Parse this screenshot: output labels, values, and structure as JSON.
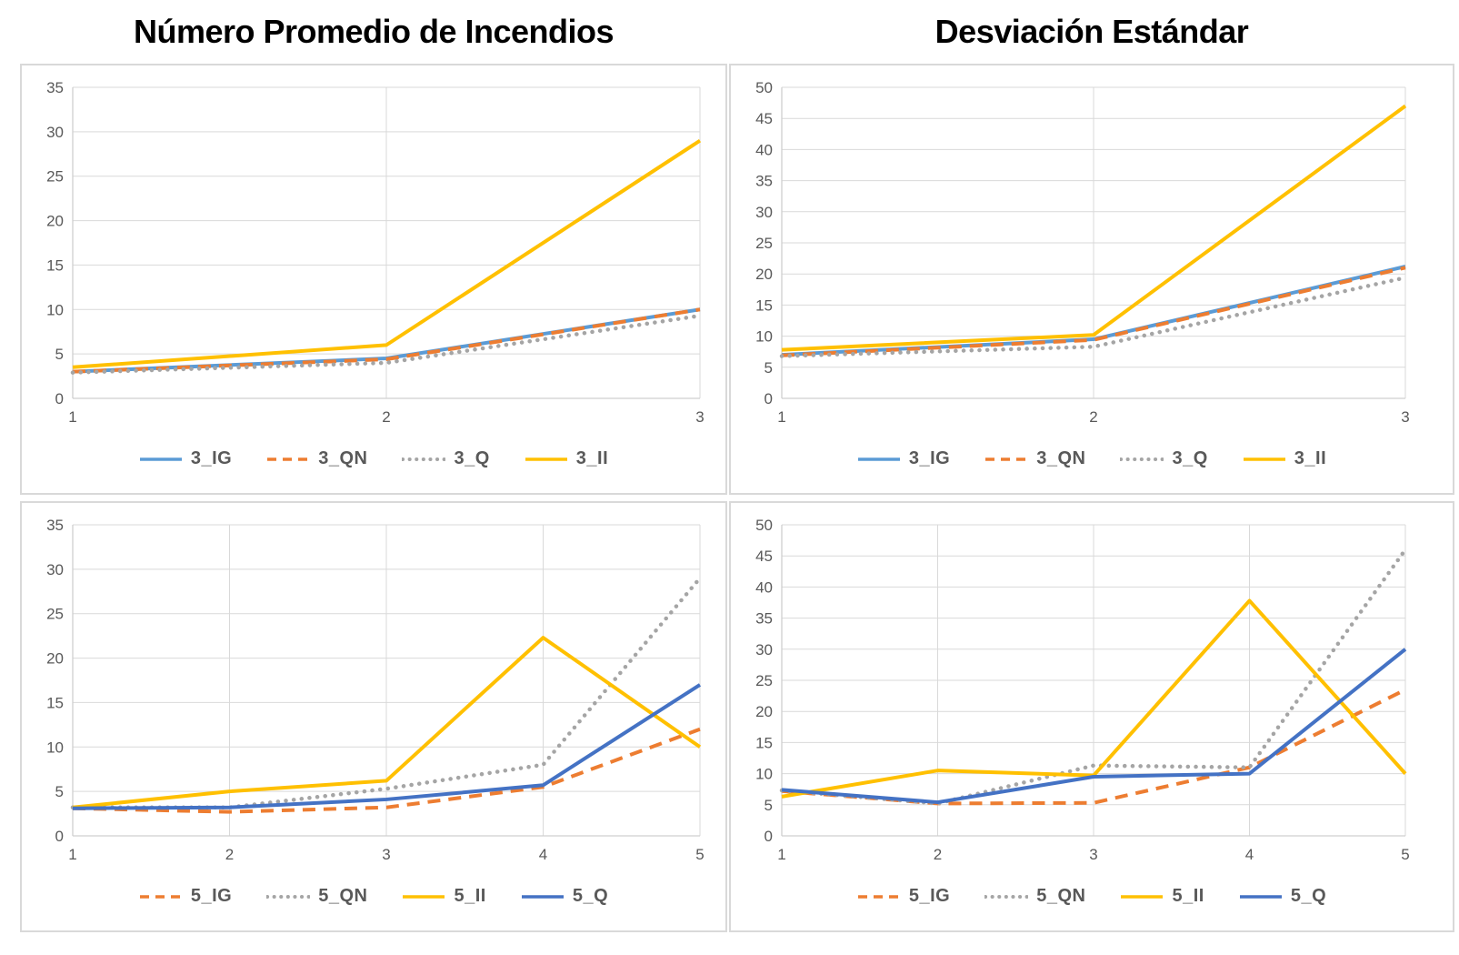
{
  "titles": {
    "left": "Número Promedio de Incendios",
    "right": "Desviación Estándar"
  },
  "style": {
    "title_color": "#000000",
    "axis_text_color": "#595959",
    "legend_text_color": "#595959",
    "grid_color": "#D9D9D9",
    "panel_border_color": "#D9D9D9",
    "series_colors": {
      "blue_light": "#5B9BD5",
      "orange": "#ED7D31",
      "gray": "#A5A5A5",
      "yellow": "#FFC000",
      "blue_dark": "#4472C4"
    }
  },
  "chart_data": [
    {
      "id": "avg-3",
      "type": "line",
      "column_title": "Número Promedio de Incendios",
      "x": [
        1,
        2,
        3
      ],
      "xticklabels": [
        "1",
        "2",
        "3"
      ],
      "ylim": [
        0,
        35
      ],
      "yticks": [
        0,
        5,
        10,
        15,
        20,
        25,
        30,
        35
      ],
      "grid": true,
      "legend_position": "bottom",
      "series": [
        {
          "name": "3_IG",
          "color": "#5B9BD5",
          "style": "solid",
          "values": [
            3.0,
            4.5,
            10.0
          ]
        },
        {
          "name": "3_QN",
          "color": "#ED7D31",
          "style": "dashed",
          "values": [
            3.0,
            4.4,
            10.0
          ]
        },
        {
          "name": "3_Q",
          "color": "#A5A5A5",
          "style": "dotted",
          "values": [
            2.9,
            4.0,
            9.3
          ]
        },
        {
          "name": "3_II",
          "color": "#FFC000",
          "style": "solid",
          "values": [
            3.5,
            6.0,
            29.0
          ]
        }
      ]
    },
    {
      "id": "std-3",
      "type": "line",
      "column_title": "Desviación Estándar",
      "x": [
        1,
        2,
        3
      ],
      "xticklabels": [
        "1",
        "2",
        "3"
      ],
      "ylim": [
        0,
        50
      ],
      "yticks": [
        0,
        5,
        10,
        15,
        20,
        25,
        30,
        35,
        40,
        45,
        50
      ],
      "grid": true,
      "legend_position": "bottom",
      "series": [
        {
          "name": "3_IG",
          "color": "#5B9BD5",
          "style": "solid",
          "values": [
            7.0,
            9.5,
            21.2
          ]
        },
        {
          "name": "3_QN",
          "color": "#ED7D31",
          "style": "dashed",
          "values": [
            6.9,
            9.4,
            21.0
          ]
        },
        {
          "name": "3_Q",
          "color": "#A5A5A5",
          "style": "dotted",
          "values": [
            6.8,
            8.3,
            19.4
          ]
        },
        {
          "name": "3_II",
          "color": "#FFC000",
          "style": "solid",
          "values": [
            7.8,
            10.2,
            47.0
          ]
        }
      ]
    },
    {
      "id": "avg-5",
      "type": "line",
      "column_title": "Número Promedio de Incendios",
      "x": [
        1,
        2,
        3,
        4,
        5
      ],
      "xticklabels": [
        "1",
        "2",
        "3",
        "4",
        "5"
      ],
      "ylim": [
        0,
        35
      ],
      "yticks": [
        0,
        5,
        10,
        15,
        20,
        25,
        30,
        35
      ],
      "grid": true,
      "legend_position": "bottom",
      "series": [
        {
          "name": "5_IG",
          "color": "#ED7D31",
          "style": "dashed",
          "values": [
            3.1,
            2.7,
            3.2,
            5.5,
            12.0
          ]
        },
        {
          "name": "5_QN",
          "color": "#A5A5A5",
          "style": "dotted",
          "values": [
            3.2,
            3.2,
            5.3,
            8.0,
            29.0
          ]
        },
        {
          "name": "5_II",
          "color": "#FFC000",
          "style": "solid",
          "values": [
            3.2,
            5.0,
            6.2,
            22.3,
            10.0
          ]
        },
        {
          "name": "5_Q",
          "color": "#4472C4",
          "style": "solid",
          "values": [
            3.1,
            3.2,
            4.1,
            5.7,
            17.0
          ]
        }
      ]
    },
    {
      "id": "std-5",
      "type": "line",
      "column_title": "Desviación Estándar",
      "x": [
        1,
        2,
        3,
        4,
        5
      ],
      "xticklabels": [
        "1",
        "2",
        "3",
        "4",
        "5"
      ],
      "ylim": [
        0,
        50
      ],
      "yticks": [
        0,
        5,
        10,
        15,
        20,
        25,
        30,
        35,
        40,
        45,
        50
      ],
      "grid": true,
      "legend_position": "bottom",
      "series": [
        {
          "name": "5_IG",
          "color": "#ED7D31",
          "style": "dashed",
          "values": [
            7.2,
            5.2,
            5.3,
            11.0,
            23.5
          ]
        },
        {
          "name": "5_QN",
          "color": "#A5A5A5",
          "style": "dotted",
          "values": [
            7.3,
            5.2,
            11.3,
            11.0,
            46.0
          ]
        },
        {
          "name": "5_II",
          "color": "#FFC000",
          "style": "solid",
          "values": [
            6.3,
            10.5,
            9.7,
            37.8,
            10.0
          ]
        },
        {
          "name": "5_Q",
          "color": "#4472C4",
          "style": "solid",
          "values": [
            7.4,
            5.4,
            9.5,
            10.0,
            30.0
          ]
        }
      ]
    }
  ]
}
